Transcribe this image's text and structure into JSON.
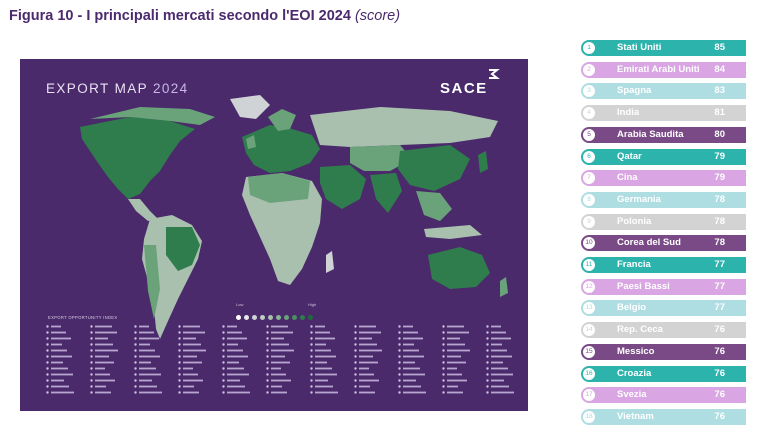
{
  "title": {
    "main": "Figura 10 - I principali mercati secondo l'EOI 2024",
    "suffix": "(score)"
  },
  "map": {
    "title": "EXPORT MAP",
    "year": "2024",
    "brand": "SACE",
    "legend_title": "EXPORT OPPORTUNITY INDEX",
    "scale_low": "Low",
    "scale_high": "High",
    "colors": {
      "background": "#4a2a6b",
      "high": "#2f7d4d",
      "mid": "#6aa27a",
      "low": "#a9c0ae",
      "lowest": "#cfd3d5"
    }
  },
  "ranking": [
    {
      "rank": "1",
      "country": "Stati Uniti",
      "score": "85",
      "color": "#2cb3ac"
    },
    {
      "rank": "2",
      "country": "Emirati Arabi Uniti",
      "score": "84",
      "color": "#d9a6e3"
    },
    {
      "rank": "3",
      "country": "Spagna",
      "score": "83",
      "color": "#aedde2"
    },
    {
      "rank": "4",
      "country": "India",
      "score": "81",
      "color": "#d3d3d3"
    },
    {
      "rank": "5",
      "country": "Arabia Saudita",
      "score": "80",
      "color": "#7a4a86"
    },
    {
      "rank": "6",
      "country": "Qatar",
      "score": "79",
      "color": "#2cb3ac"
    },
    {
      "rank": "7",
      "country": "Cina",
      "score": "79",
      "color": "#d9a6e3"
    },
    {
      "rank": "8",
      "country": "Germania",
      "score": "78",
      "color": "#aedde2"
    },
    {
      "rank": "9",
      "country": "Polonia",
      "score": "78",
      "color": "#d3d3d3"
    },
    {
      "rank": "10",
      "country": "Corea del Sud",
      "score": "78",
      "color": "#7a4a86"
    },
    {
      "rank": "11",
      "country": "Francia",
      "score": "77",
      "color": "#2cb3ac"
    },
    {
      "rank": "12",
      "country": "Paesi Bassi",
      "score": "77",
      "color": "#d9a6e3"
    },
    {
      "rank": "13",
      "country": "Belgio",
      "score": "77",
      "color": "#aedde2"
    },
    {
      "rank": "14",
      "country": "Rep. Ceca",
      "score": "76",
      "color": "#d3d3d3"
    },
    {
      "rank": "15",
      "country": "Messico",
      "score": "76",
      "color": "#7a4a86"
    },
    {
      "rank": "16",
      "country": "Croazia",
      "score": "76",
      "color": "#2cb3ac"
    },
    {
      "rank": "17",
      "country": "Svezia",
      "score": "76",
      "color": "#d9a6e3"
    },
    {
      "rank": "18",
      "country": "Vietnam",
      "score": "76",
      "color": "#aedde2"
    }
  ]
}
